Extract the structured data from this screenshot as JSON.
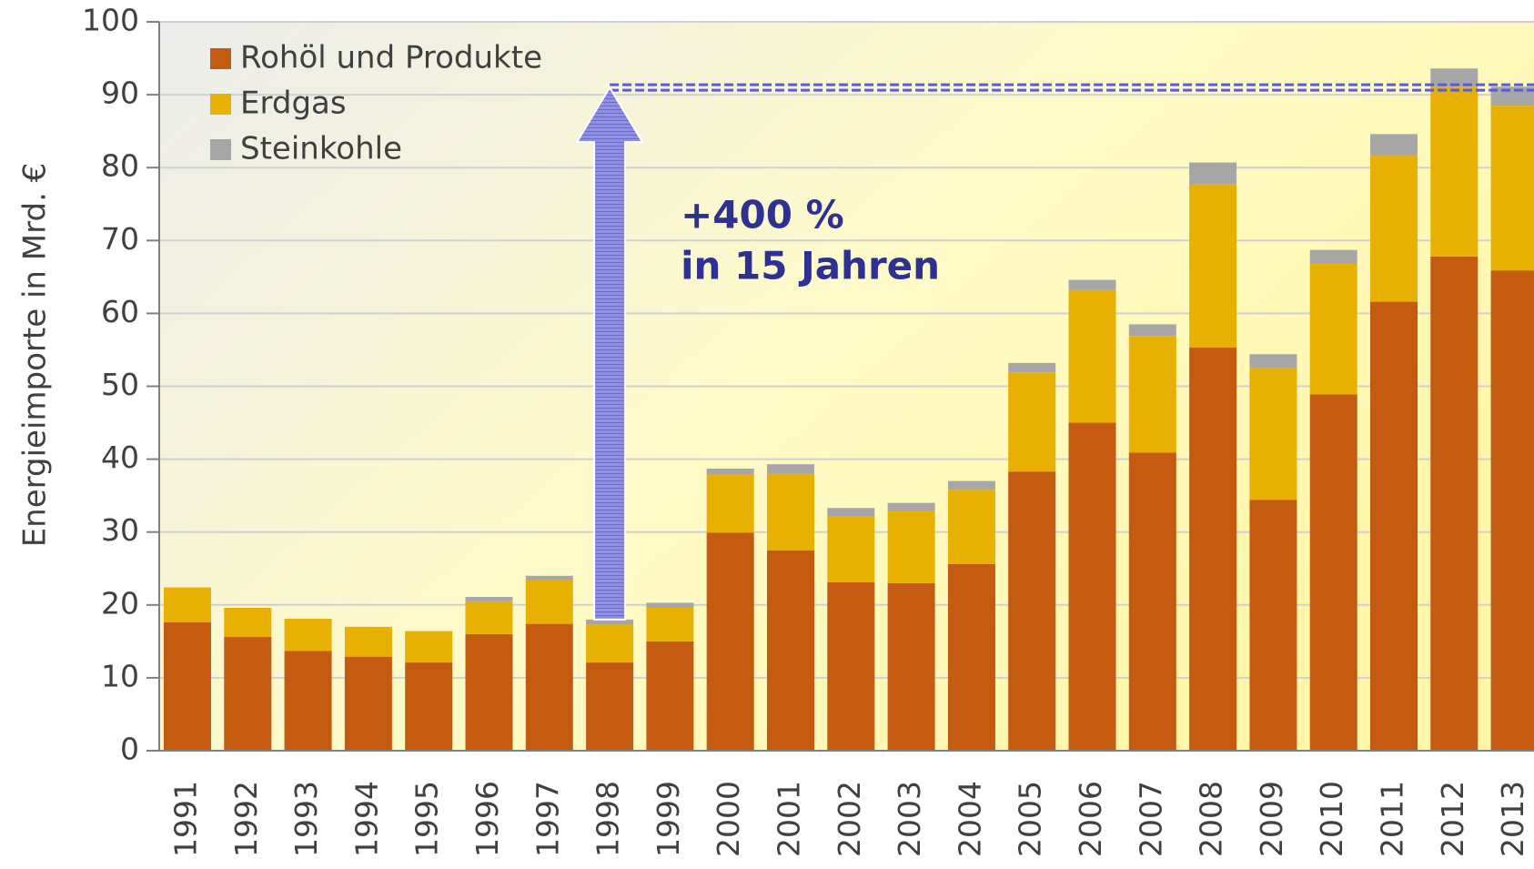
{
  "chart_data": {
    "type": "stacked_bar",
    "y_label": "Energieimporte in Mrd. €",
    "categories": [
      "1991",
      "1992",
      "1993",
      "1994",
      "1995",
      "1996",
      "1997",
      "1998",
      "1999",
      "2000",
      "2001",
      "2002",
      "2003",
      "2004",
      "2005",
      "2006",
      "2007",
      "2008",
      "2009",
      "2010",
      "2011",
      "2012",
      "2013"
    ],
    "series": [
      {
        "name": "Rohöl und Produkte",
        "color": "#c55a11",
        "values": [
          17.6,
          15.6,
          13.7,
          12.9,
          12.1,
          16.0,
          17.4,
          12.1,
          15.0,
          29.9,
          27.5,
          23.1,
          23.0,
          25.6,
          38.3,
          45.0,
          40.9,
          55.3,
          34.4,
          48.9,
          61.6,
          67.8,
          65.9
        ]
      },
      {
        "name": "Erdgas",
        "color": "#e8b000",
        "values": [
          4.8,
          4.0,
          4.4,
          4.1,
          4.3,
          4.5,
          6.0,
          5.2,
          4.6,
          8.0,
          10.5,
          9.1,
          9.9,
          10.2,
          13.6,
          18.2,
          16.0,
          22.4,
          18.1,
          17.9,
          20.1,
          23.3,
          22.6
        ]
      },
      {
        "name": "Steinkohle",
        "color": "#a6a6a6",
        "values": [
          0,
          0,
          0,
          0,
          0,
          0.6,
          0.6,
          0.7,
          0.7,
          0.8,
          1.3,
          1.1,
          1.1,
          1.2,
          1.3,
          1.4,
          1.6,
          3.0,
          1.9,
          1.9,
          2.9,
          2.5,
          2.6
        ]
      }
    ],
    "ylim": [
      0,
      100
    ],
    "yticks": [
      0,
      10,
      20,
      30,
      40,
      50,
      60,
      70,
      80,
      90,
      100
    ],
    "grid": true,
    "legend": "top-left",
    "annotation": {
      "lines": [
        "+400 %",
        "in 15 Jahren"
      ],
      "at": "1998",
      "from": 18,
      "to": 91
    }
  }
}
